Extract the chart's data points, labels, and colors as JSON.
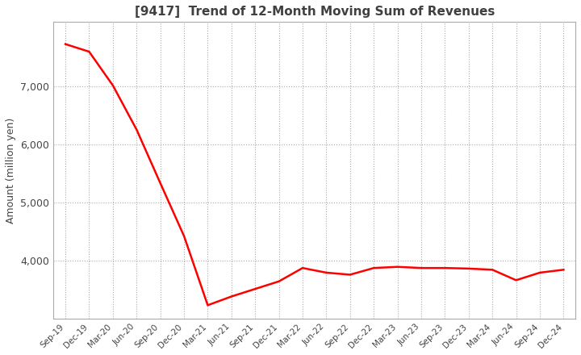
{
  "title": "[9417]  Trend of 12-Month Moving Sum of Revenues",
  "ylabel": "Amount (million yen)",
  "line_color": "#ff0000",
  "line_width": 1.8,
  "background_color": "#ffffff",
  "grid_color": "#aaaaaa",
  "title_color": "#404040",
  "ylim": [
    3000,
    8100
  ],
  "yticks": [
    4000,
    5000,
    6000,
    7000
  ],
  "labels": [
    "Sep-19",
    "Dec-19",
    "Mar-20",
    "Jun-20",
    "Sep-20",
    "Dec-20",
    "Mar-21",
    "Jun-21",
    "Sep-21",
    "Dec-21",
    "Mar-22",
    "Jun-22",
    "Sep-22",
    "Dec-22",
    "Mar-23",
    "Jun-23",
    "Sep-23",
    "Dec-23",
    "Mar-24",
    "Jun-24",
    "Sep-24",
    "Dec-24"
  ],
  "values": [
    7720,
    7590,
    7010,
    6250,
    5330,
    4420,
    3230,
    3380,
    3510,
    3640,
    3870,
    3790,
    3755,
    3870,
    3890,
    3870,
    3870,
    3860,
    3840,
    3660,
    3790,
    3840
  ]
}
